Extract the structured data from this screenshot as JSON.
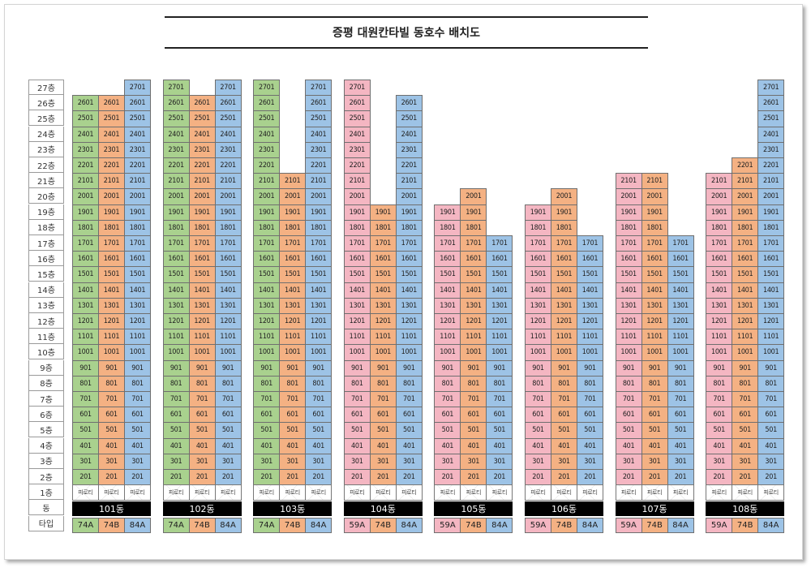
{
  "title": "증평 대원칸타빌 동호수 배치도",
  "floor_labels": [
    "27층",
    "26층",
    "25층",
    "24층",
    "23층",
    "22층",
    "21층",
    "20층",
    "19층",
    "18층",
    "17층",
    "16층",
    "15층",
    "14층",
    "13층",
    "12층",
    "11층",
    "10층",
    "9층",
    "8층",
    "7층",
    "6층",
    "5층",
    "4층",
    "3층",
    "2층",
    "1층",
    "동",
    "타입"
  ],
  "pilotis_label": "피로티",
  "colors": {
    "74A": "#a9d18e",
    "74B": "#f4b183",
    "84A": "#9dc3e6",
    "59A": "#f4b6c2"
  },
  "buildings": [
    {
      "name": "101동",
      "columns": [
        {
          "type": "74A",
          "line": "01",
          "top": 26
        },
        {
          "type": "74B",
          "line": "01",
          "top": 26
        },
        {
          "type": "84A",
          "line": "01",
          "top": 27
        }
      ]
    },
    {
      "name": "102동",
      "columns": [
        {
          "type": "74A",
          "line": "01",
          "top": 27
        },
        {
          "type": "74B",
          "line": "01",
          "top": 26
        },
        {
          "type": "84A",
          "line": "01",
          "top": 27
        }
      ]
    },
    {
      "name": "103동",
      "columns": [
        {
          "type": "74A",
          "line": "01",
          "top": 27
        },
        {
          "type": "74B",
          "line": "01",
          "top": 21
        },
        {
          "type": "84A",
          "line": "01",
          "top": 27
        }
      ]
    },
    {
      "name": "104동",
      "columns": [
        {
          "type": "59A",
          "line": "01",
          "top": 27
        },
        {
          "type": "74B",
          "line": "01",
          "top": 19
        },
        {
          "type": "84A",
          "line": "01",
          "top": 26
        }
      ]
    },
    {
      "name": "105동",
      "columns": [
        {
          "type": "59A",
          "line": "01",
          "top": 19
        },
        {
          "type": "74B",
          "line": "01",
          "top": 20
        },
        {
          "type": "84A",
          "line": "01",
          "top": 17
        }
      ]
    },
    {
      "name": "106동",
      "columns": [
        {
          "type": "59A",
          "line": "01",
          "top": 19
        },
        {
          "type": "74B",
          "line": "01",
          "top": 20
        },
        {
          "type": "84A",
          "line": "01",
          "top": 17
        }
      ]
    },
    {
      "name": "107동",
      "columns": [
        {
          "type": "59A",
          "line": "01",
          "top": 21
        },
        {
          "type": "74B",
          "line": "01",
          "top": 21
        },
        {
          "type": "84A",
          "line": "01",
          "top": 17
        }
      ]
    },
    {
      "name": "108동",
      "columns": [
        {
          "type": "59A",
          "line": "01",
          "top": 21
        },
        {
          "type": "74B",
          "line": "01",
          "top": 22
        },
        {
          "type": "84A",
          "line": "01",
          "top": 27
        }
      ]
    }
  ]
}
